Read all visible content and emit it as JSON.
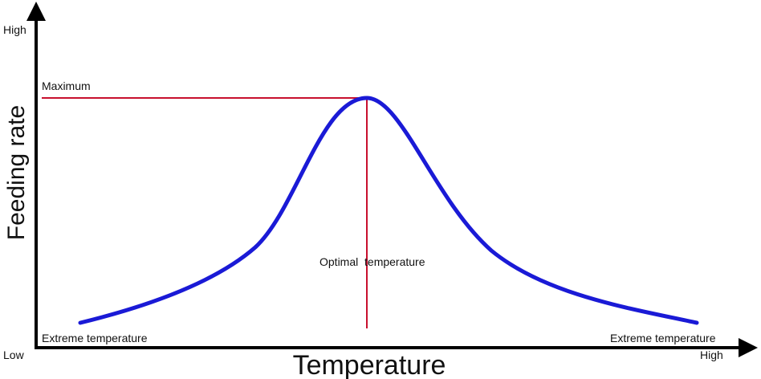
{
  "chart_data": {
    "type": "line",
    "xlabel": "Temperature",
    "ylabel": "Feeding rate",
    "x_axis": {
      "low_label": "Low",
      "high_label": "High"
    },
    "y_axis": {
      "low_label": "Low",
      "high_label": "High"
    },
    "annotations": {
      "maximum": "Maximum",
      "optimal": "Optimal  temperature",
      "extreme_left": "Extreme temperature",
      "extreme_right": "Extreme temperature"
    },
    "series": [
      {
        "shape": "bell curve",
        "peak": "Maximum at Optimal temperature"
      }
    ],
    "colors": {
      "curve": "#1a1ad6",
      "guide_lines": "#c8102e",
      "axes": "#000000"
    }
  }
}
